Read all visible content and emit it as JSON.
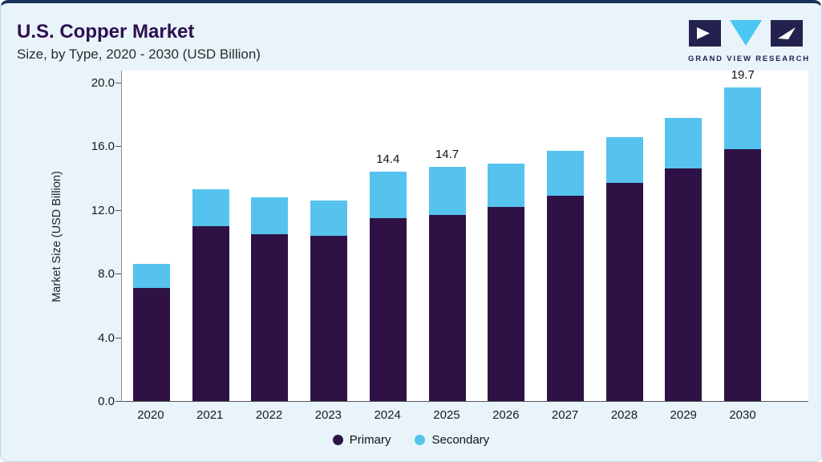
{
  "header": {
    "title": "U.S. Copper Market",
    "subtitle": "Size, by Type, 2020 - 2030 (USD Billion)"
  },
  "logo": {
    "text": "GRAND VIEW RESEARCH"
  },
  "chart_data": {
    "type": "bar",
    "stacked": true,
    "title": "U.S. Copper Market",
    "subtitle": "Size, by Type, 2020 - 2030 (USD Billion)",
    "ylabel": "Market Size (USD Billion)",
    "ylim": [
      0,
      20
    ],
    "ytick_labels": [
      "20.0",
      "16.0",
      "12.0",
      "8.0",
      "4.0",
      "0.0"
    ],
    "ytick_values": [
      20,
      16,
      12,
      8,
      4,
      0
    ],
    "grid": false,
    "legend_position": "bottom",
    "categories": [
      "2020",
      "2021",
      "2022",
      "2023",
      "2024",
      "2025",
      "2026",
      "2027",
      "2028",
      "2029",
      "2030"
    ],
    "series": [
      {
        "name": "Primary",
        "color": "#2e1245",
        "values": [
          7.1,
          11.0,
          10.5,
          10.4,
          11.5,
          11.7,
          12.2,
          12.9,
          13.7,
          14.6,
          15.8
        ]
      },
      {
        "name": "Secondary",
        "color": "#55c3ee",
        "values": [
          1.5,
          2.3,
          2.3,
          2.2,
          2.9,
          3.0,
          2.7,
          2.8,
          2.9,
          3.2,
          3.9
        ]
      }
    ],
    "totals": [
      8.6,
      13.3,
      12.8,
      12.6,
      14.4,
      14.7,
      14.9,
      15.7,
      16.6,
      17.8,
      19.7
    ],
    "data_labels": [
      "",
      "",
      "",
      "",
      "14.4",
      "14.7",
      "",
      "",
      "",
      "",
      "19.7"
    ]
  },
  "colors": {
    "primary": "#2e1245",
    "secondary": "#55c3ee",
    "title_text": "#2d0f4e",
    "top_accent": "#16315a",
    "card_background": "#e9f3fa"
  }
}
